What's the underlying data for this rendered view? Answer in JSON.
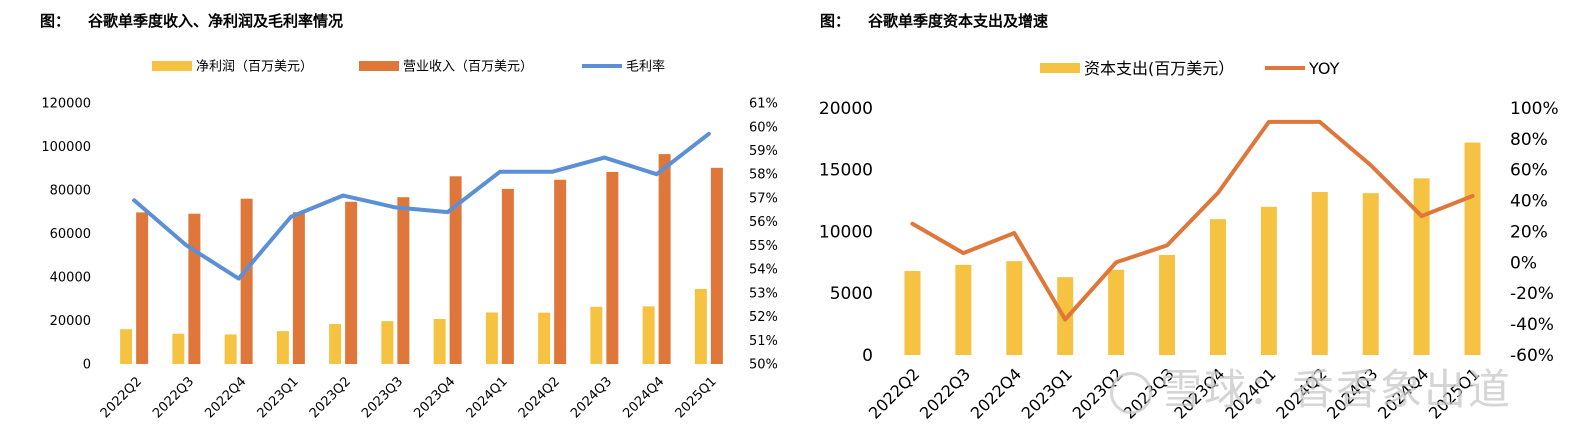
{
  "left": {
    "title_prefix": "图：",
    "title": "谷歌单季度收入、净利润及毛利率情况"
  },
  "right": {
    "title_prefix": "图：",
    "title": "谷歌单季度资本支出及增速"
  },
  "watermark": "雪球：香香象出道",
  "colors": {
    "yellow": "#F5C242",
    "orange": "#E0773A",
    "blue": "#5B8FD6",
    "orange_line": "#E0773A"
  },
  "chart_data": [
    {
      "type": "bar",
      "categories": [
        "2022Q2",
        "2022Q3",
        "2022Q4",
        "2023Q1",
        "2023Q2",
        "2023Q3",
        "2023Q4",
        "2024Q1",
        "2024Q2",
        "2024Q3",
        "2024Q4",
        "2025Q1"
      ],
      "series": [
        {
          "name": "净利润（百万美元）",
          "type": "bar",
          "axis": "left",
          "values": [
            16000,
            13900,
            13600,
            15100,
            18400,
            19700,
            20700,
            23700,
            23600,
            26300,
            26500,
            34500
          ]
        },
        {
          "name": "营业收入（百万美元）",
          "type": "bar",
          "axis": "left",
          "values": [
            69700,
            69100,
            76000,
            69800,
            74600,
            76700,
            86300,
            80500,
            84700,
            88300,
            96500,
            90200
          ]
        },
        {
          "name": "毛利率",
          "type": "line",
          "axis": "right",
          "values": [
            0.569,
            0.55,
            0.536,
            0.562,
            0.571,
            0.566,
            0.564,
            0.581,
            0.581,
            0.587,
            0.58,
            0.597
          ]
        }
      ],
      "ylim_left": [
        0,
        120000
      ],
      "yticks_left": [
        "0",
        "20000",
        "40000",
        "60000",
        "80000",
        "100000",
        "120000"
      ],
      "ylim_right": [
        0.5,
        0.61
      ],
      "yticks_right": [
        "50%",
        "51%",
        "52%",
        "53%",
        "54%",
        "55%",
        "56%",
        "57%",
        "58%",
        "59%",
        "60%",
        "61%"
      ],
      "legend": "top"
    },
    {
      "type": "bar",
      "categories": [
        "2022Q2",
        "2022Q3",
        "2022Q4",
        "2023Q1",
        "2023Q2",
        "2023Q3",
        "2023Q4",
        "2024Q1",
        "2024Q2",
        "2024Q3",
        "2024Q4",
        "2025Q1"
      ],
      "series": [
        {
          "name": "资本支出(百万美元）",
          "type": "bar",
          "axis": "left",
          "values": [
            6800,
            7300,
            7600,
            6300,
            6900,
            8100,
            11000,
            12000,
            13200,
            13100,
            14300,
            17200
          ]
        },
        {
          "name": "YOY",
          "type": "line",
          "axis": "right",
          "values": [
            0.25,
            0.06,
            0.19,
            -0.37,
            0.0,
            0.11,
            0.45,
            0.91,
            0.91,
            0.63,
            0.3,
            0.43
          ]
        }
      ],
      "ylim_left": [
        0,
        20000
      ],
      "yticks_left": [
        "0",
        "5000",
        "10000",
        "15000",
        "20000"
      ],
      "ylim_right": [
        -0.6,
        1.0
      ],
      "yticks_right": [
        "-60%",
        "-40%",
        "-20%",
        "0%",
        "20%",
        "40%",
        "60%",
        "80%",
        "100%"
      ],
      "legend": "top"
    }
  ]
}
